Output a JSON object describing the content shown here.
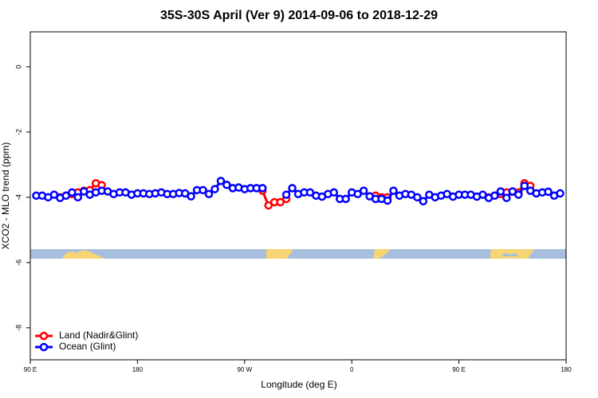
{
  "chart_data": {
    "type": "line",
    "title": "35S-30S April (Ver 9)   2014-09-06 to 2018-12-29",
    "xlabel": "Longitude (deg E)",
    "ylabel": "XCO2 - MLO trend (ppm)",
    "xlim": [
      90,
      540
    ],
    "ylim": [
      -8.98,
      1.07
    ],
    "xticks": [
      {
        "value": 90,
        "label": "90 E"
      },
      {
        "value": 180,
        "label": "180"
      },
      {
        "value": 270,
        "label": "90 W"
      },
      {
        "value": 360,
        "label": "0"
      },
      {
        "value": 450,
        "label": "90 E"
      },
      {
        "value": 540,
        "label": "180"
      }
    ],
    "yticks": [
      0,
      -2,
      -4,
      -6,
      -8
    ],
    "legend": "bottom-left",
    "x": [
      95,
      100,
      105,
      110,
      115,
      120,
      125,
      130,
      135,
      140,
      145,
      150,
      155,
      160,
      165,
      170,
      175,
      180,
      185,
      190,
      195,
      200,
      205,
      210,
      215,
      220,
      225,
      230,
      235,
      240,
      245,
      250,
      255,
      260,
      265,
      270,
      275,
      280,
      285,
      290,
      295,
      300,
      305,
      310,
      315,
      320,
      325,
      330,
      335,
      340,
      345,
      350,
      355,
      360,
      365,
      370,
      375,
      380,
      385,
      390,
      395,
      400,
      405,
      410,
      415,
      420,
      425,
      430,
      435,
      440,
      445,
      450,
      455,
      460,
      465,
      470,
      475,
      480,
      485,
      490,
      495,
      500,
      505,
      510,
      515,
      520,
      525,
      530,
      535
    ],
    "series": [
      {
        "name": "Land (Nadir&Glint)",
        "color": "#ff0000",
        "values": [
          null,
          null,
          null,
          null,
          -4.0,
          -3.95,
          -3.9,
          -3.85,
          -3.8,
          -3.78,
          -3.57,
          -3.63,
          null,
          null,
          null,
          null,
          null,
          null,
          null,
          null,
          null,
          null,
          null,
          null,
          null,
          null,
          null,
          null,
          null,
          null,
          null,
          null,
          null,
          null,
          null,
          null,
          null,
          null,
          -3.8,
          -4.25,
          -4.15,
          -4.15,
          -4.05,
          null,
          null,
          null,
          null,
          null,
          null,
          null,
          null,
          null,
          null,
          null,
          null,
          null,
          null,
          -3.95,
          -4.0,
          -4.0,
          null,
          null,
          null,
          null,
          null,
          null,
          null,
          null,
          null,
          null,
          null,
          null,
          null,
          null,
          null,
          null,
          -4.0,
          -3.95,
          -3.9,
          -3.85,
          -3.83,
          -3.85,
          -3.57,
          -3.65,
          null,
          null,
          null,
          null,
          null
        ]
      },
      {
        "name": "Ocean (Glint)",
        "color": "#0000ff",
        "values": [
          -3.95,
          -3.95,
          -4.0,
          -3.92,
          -4.02,
          -3.95,
          -3.85,
          -4.0,
          -3.82,
          -3.92,
          -3.85,
          -3.8,
          -3.82,
          -3.9,
          -3.85,
          -3.85,
          -3.92,
          -3.88,
          -3.88,
          -3.9,
          -3.88,
          -3.85,
          -3.9,
          -3.9,
          -3.87,
          -3.88,
          -3.97,
          -3.78,
          -3.78,
          -3.9,
          -3.75,
          -3.5,
          -3.62,
          -3.72,
          -3.7,
          -3.75,
          -3.72,
          -3.72,
          -3.72,
          null,
          null,
          null,
          -3.92,
          -3.72,
          -3.9,
          -3.85,
          -3.85,
          -3.95,
          -3.98,
          -3.9,
          -3.85,
          -4.05,
          -4.05,
          -3.85,
          -3.9,
          -3.8,
          -3.97,
          -4.05,
          -4.05,
          -4.1,
          -3.8,
          -3.95,
          -3.9,
          -3.92,
          -4.0,
          -4.12,
          -3.92,
          -4.0,
          -3.95,
          -3.9,
          -3.98,
          -3.92,
          -3.92,
          -3.92,
          -3.98,
          -3.92,
          -4.02,
          -3.95,
          -3.82,
          -4.02,
          -3.82,
          -3.92,
          -3.65,
          -3.8,
          -3.88,
          -3.85,
          -3.83,
          -3.95,
          -3.88
        ]
      }
    ]
  }
}
